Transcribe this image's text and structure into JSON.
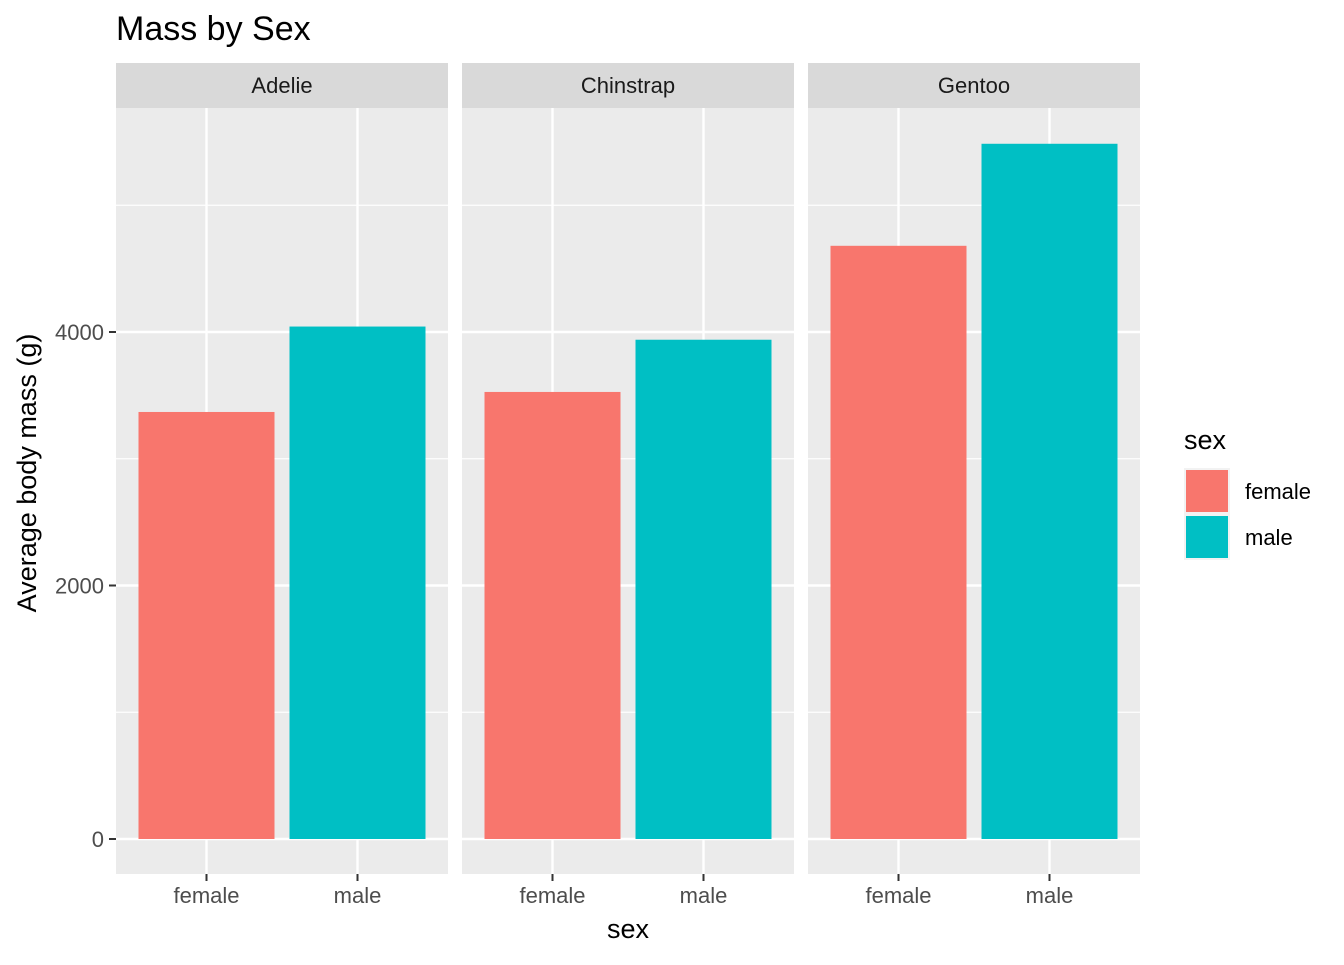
{
  "chart_data": {
    "type": "bar",
    "title": "Mass by Sex",
    "xlabel": "sex",
    "ylabel": "Average body mass (g)",
    "facets": [
      "Adelie",
      "Chinstrap",
      "Gentoo"
    ],
    "categories": [
      "female",
      "male"
    ],
    "series": [
      {
        "facet": "Adelie",
        "values": [
          3369,
          4043
        ]
      },
      {
        "facet": "Chinstrap",
        "values": [
          3527,
          3939
        ]
      },
      {
        "facet": "Gentoo",
        "values": [
          4680,
          5485
        ]
      }
    ],
    "ylim": [
      -270,
      5760
    ],
    "yticks": [
      0,
      2000,
      4000
    ],
    "yticks_labels": [
      "0",
      "2000",
      "4000"
    ],
    "grid": true,
    "legend": {
      "title": "sex",
      "placement": "right",
      "entries": [
        {
          "label": "female",
          "color": "#F8766D"
        },
        {
          "label": "male",
          "color": "#00BFC4"
        }
      ]
    },
    "colors": {
      "female": "#F8766D",
      "male": "#00BFC4",
      "panel": "#EBEBEB",
      "strip": "#D9D9D9",
      "grid": "#FFFFFF"
    }
  }
}
